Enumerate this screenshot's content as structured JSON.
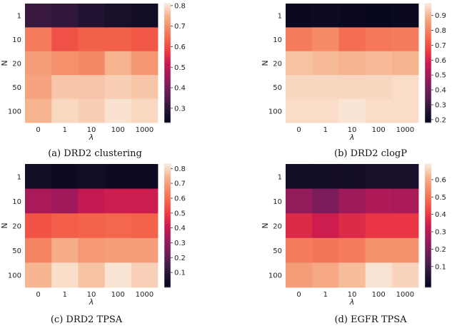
{
  "colormap_stops": [
    "#03051a",
    "#221331",
    "#4c1d4b",
    "#781c5a",
    "#a11a5b",
    "#cb1b4f",
    "#ed3943",
    "#f3644a",
    "#f58b68",
    "#f6b48e",
    "#faebdd"
  ],
  "chart_data": [
    {
      "type": "heatmap",
      "caption": "(a) DRD2 clustering",
      "xlabel": "λ",
      "ylabel": "N",
      "x_categories": [
        "0",
        "1",
        "10",
        "100",
        "1000"
      ],
      "y_categories": [
        "1",
        "10",
        "20",
        "50",
        "100"
      ],
      "values": [
        [
          0.32,
          0.31,
          0.29,
          0.27,
          0.26
        ],
        [
          0.67,
          0.61,
          0.63,
          0.63,
          0.62
        ],
        [
          0.72,
          0.7,
          0.69,
          0.75,
          0.71
        ],
        [
          0.73,
          0.77,
          0.77,
          0.78,
          0.77
        ],
        [
          0.75,
          0.79,
          0.78,
          0.8,
          0.79
        ]
      ],
      "vmin": 0.23,
      "vmax": 0.81,
      "colorbar_ticks": [
        0.3,
        0.4,
        0.5,
        0.6,
        0.7,
        0.8
      ],
      "colorbar_labels": [
        "0.3",
        "0.4",
        "0.5",
        "0.6",
        "0.7",
        "0.8"
      ]
    },
    {
      "type": "heatmap",
      "caption": "(b) DRD2 clogP",
      "xlabel": "λ",
      "ylabel": "N",
      "x_categories": [
        "0",
        "1",
        "10",
        "100",
        "1000"
      ],
      "y_categories": [
        "1",
        "10",
        "20",
        "50",
        "100"
      ],
      "values": [
        [
          0.2,
          0.21,
          0.2,
          0.19,
          0.2
        ],
        [
          0.79,
          0.82,
          0.76,
          0.78,
          0.79
        ],
        [
          0.92,
          0.91,
          0.9,
          0.91,
          0.9
        ],
        [
          0.95,
          0.95,
          0.95,
          0.95,
          0.96
        ],
        [
          0.96,
          0.96,
          0.97,
          0.96,
          0.96
        ]
      ],
      "vmin": 0.18,
      "vmax": 0.98,
      "colorbar_ticks": [
        0.2,
        0.3,
        0.4,
        0.5,
        0.6,
        0.7,
        0.8,
        0.9
      ],
      "colorbar_labels": [
        "0.2",
        "0.3",
        "0.4",
        "0.5",
        "0.6",
        "0.7",
        "0.8",
        "0.9"
      ]
    },
    {
      "type": "heatmap",
      "caption": "(c) DRD2 TPSA",
      "xlabel": "λ",
      "ylabel": "N",
      "x_categories": [
        "0",
        "1",
        "10",
        "100",
        "1000"
      ],
      "y_categories": [
        "1",
        "10",
        "20",
        "50",
        "100"
      ],
      "values": [
        [
          0.04,
          0.03,
          0.04,
          0.03,
          0.03
        ],
        [
          0.35,
          0.33,
          0.4,
          0.42,
          0.42
        ],
        [
          0.55,
          0.57,
          0.58,
          0.59,
          0.58
        ],
        [
          0.65,
          0.73,
          0.69,
          0.7,
          0.7
        ],
        [
          0.75,
          0.81,
          0.77,
          0.82,
          0.79
        ]
      ],
      "vmin": 0.0,
      "vmax": 0.83,
      "colorbar_ticks": [
        0.1,
        0.2,
        0.3,
        0.4,
        0.5,
        0.6,
        0.7,
        0.8
      ],
      "colorbar_labels": [
        "0.1",
        "0.2",
        "0.3",
        "0.4",
        "0.5",
        "0.6",
        "0.7",
        "0.8"
      ]
    },
    {
      "type": "heatmap",
      "caption": "(d) EGFR TPSA",
      "xlabel": "λ",
      "ylabel": "N",
      "x_categories": [
        "0",
        "1",
        "10",
        "100",
        "1000"
      ],
      "y_categories": [
        "1",
        "10",
        "20",
        "50",
        "100"
      ],
      "values": [
        [
          0.02,
          0.02,
          0.02,
          0.03,
          0.03
        ],
        [
          0.24,
          0.2,
          0.26,
          0.29,
          0.28
        ],
        [
          0.37,
          0.34,
          0.37,
          0.4,
          0.4
        ],
        [
          0.52,
          0.51,
          0.52,
          0.56,
          0.56
        ],
        [
          0.58,
          0.6,
          0.63,
          0.68,
          0.66
        ]
      ],
      "vmin": -0.02,
      "vmax": 0.69,
      "colorbar_ticks": [
        0.1,
        0.2,
        0.3,
        0.4,
        0.5,
        0.6
      ],
      "colorbar_labels": [
        "0.1",
        "0.2",
        "0.3",
        "0.4",
        "0.5",
        "0.6"
      ]
    }
  ]
}
